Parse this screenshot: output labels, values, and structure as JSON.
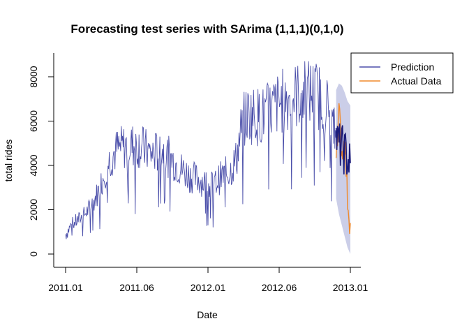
{
  "chart_data": {
    "type": "line",
    "title": "Forecasting test series with SArima (1,1,1)(0,1,0)",
    "xlabel": "Date",
    "ylabel": "total rides",
    "xlim": [
      "2011.01",
      "2013.01"
    ],
    "ylim": [
      0,
      8000
    ],
    "x_ticks": [
      {
        "label": "2011.01",
        "value": 0
      },
      {
        "label": "2011.06",
        "value": 0.5
      },
      {
        "label": "2012.01",
        "value": 1.0
      },
      {
        "label": "2012.06",
        "value": 1.5
      },
      {
        "label": "2013.01",
        "value": 2.0
      }
    ],
    "y_ticks": [
      0,
      2000,
      4000,
      6000,
      8000
    ],
    "legend": {
      "position": "top-right",
      "entries": [
        {
          "label": "Prediction",
          "color": "#4b4faa"
        },
        {
          "label": "Actual Data",
          "color": "#f08a2c"
        }
      ]
    },
    "colors": {
      "series": "#4b4faa",
      "prediction": "#1a1a7a",
      "actual": "#f08a2c",
      "interval": "#b9bde0"
    },
    "series": [
      {
        "name": "",
        "role": "history",
        "x": [
          0,
          0.04,
          0.08,
          0.12,
          0.16,
          0.2,
          0.24,
          0.28,
          0.32,
          0.36,
          0.4,
          0.44,
          0.48,
          0.52,
          0.56,
          0.6,
          0.64,
          0.68,
          0.72,
          0.76,
          0.8,
          0.84,
          0.88,
          0.92,
          0.96,
          1.0,
          1.04,
          1.08,
          1.12,
          1.16,
          1.2,
          1.24,
          1.28,
          1.32,
          1.36,
          1.4,
          1.44,
          1.48,
          1.52,
          1.56,
          1.6,
          1.64,
          1.68,
          1.72,
          1.76,
          1.8,
          1.84,
          1.88,
          1.9
        ],
        "values": [
          900,
          1300,
          1500,
          1700,
          2000,
          2400,
          3000,
          3800,
          4400,
          4700,
          4800,
          4900,
          4900,
          4900,
          4700,
          4500,
          4600,
          4700,
          4400,
          4200,
          3900,
          3700,
          3500,
          3400,
          3300,
          3100,
          3100,
          3400,
          3600,
          3800,
          4300,
          5900,
          6300,
          6300,
          6200,
          6300,
          6500,
          6700,
          6900,
          7000,
          7100,
          7200,
          7300,
          7300,
          7200,
          7000,
          6600,
          5600,
          5300
        ]
      }
    ],
    "forecast": {
      "x": [
        1.9,
        1.92,
        1.94,
        1.96,
        1.98,
        2.0
      ],
      "prediction": [
        5300,
        4900,
        4800,
        4600,
        4300,
        4100
      ],
      "actual": [
        5000,
        6300,
        4700,
        5200,
        2600,
        1400
      ],
      "lower": [
        2500,
        1800,
        1300,
        800,
        300,
        0
      ],
      "upper": [
        7400,
        7700,
        7600,
        7300,
        6900,
        6700
      ]
    }
  }
}
